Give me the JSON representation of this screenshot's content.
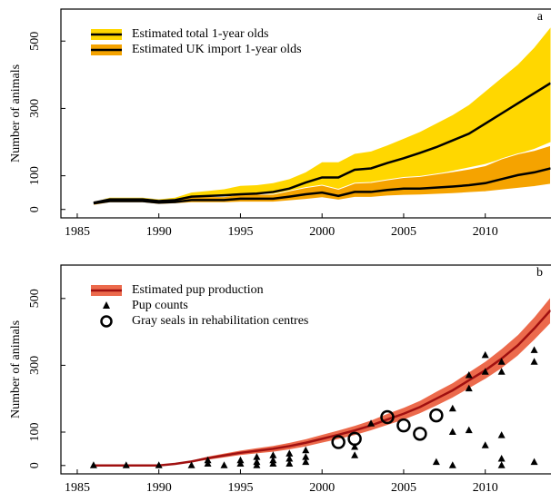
{
  "chart_data": [
    {
      "type": "line",
      "panel": "a",
      "ylabel": "Number of animals",
      "xlim": [
        1984,
        2014
      ],
      "xticks": [
        1985,
        1990,
        1995,
        2000,
        2005,
        2010
      ],
      "ylim": [
        -25,
        595
      ],
      "yticks": [
        0,
        100,
        300,
        500
      ],
      "x": [
        1986,
        1987,
        1988,
        1989,
        1990,
        1991,
        1992,
        1993,
        1994,
        1995,
        1996,
        1997,
        1998,
        1999,
        2000,
        2001,
        2002,
        2003,
        2004,
        2005,
        2006,
        2007,
        2008,
        2009,
        2010,
        2011,
        2012,
        2013,
        2014
      ],
      "series": [
        {
          "name": "Estimated total 1-year olds",
          "type": "band-line",
          "color": "#ffd700",
          "line_color": "#000000",
          "values": [
            20,
            30,
            30,
            30,
            25,
            28,
            38,
            40,
            42,
            45,
            47,
            52,
            62,
            80,
            95,
            95,
            118,
            122,
            138,
            152,
            168,
            185,
            205,
            225,
            255,
            285,
            315,
            345,
            375
          ],
          "lower": [
            15,
            25,
            25,
            25,
            20,
            22,
            28,
            30,
            30,
            32,
            33,
            35,
            40,
            50,
            60,
            60,
            70,
            72,
            80,
            88,
            95,
            105,
            115,
            125,
            135,
            150,
            165,
            180,
            200
          ],
          "upper": [
            25,
            35,
            35,
            35,
            30,
            35,
            50,
            55,
            60,
            70,
            72,
            78,
            90,
            110,
            140,
            140,
            165,
            172,
            190,
            210,
            230,
            255,
            280,
            310,
            350,
            390,
            430,
            480,
            540
          ]
        },
        {
          "name": "Estimated UK import 1-year olds",
          "type": "band-line",
          "color": "#f5a300",
          "line_color": "#000000",
          "values": [
            18,
            25,
            25,
            25,
            20,
            22,
            28,
            28,
            28,
            32,
            32,
            32,
            38,
            45,
            50,
            40,
            52,
            52,
            58,
            62,
            62,
            65,
            68,
            72,
            78,
            90,
            102,
            110,
            122
          ],
          "lower": [
            12,
            20,
            20,
            20,
            15,
            17,
            20,
            20,
            20,
            22,
            22,
            22,
            26,
            30,
            35,
            28,
            36,
            36,
            40,
            42,
            43,
            45,
            47,
            50,
            53,
            58,
            63,
            68,
            75
          ],
          "upper": [
            25,
            32,
            32,
            32,
            27,
            30,
            38,
            38,
            38,
            45,
            45,
            45,
            55,
            65,
            72,
            60,
            78,
            80,
            88,
            95,
            98,
            105,
            112,
            120,
            130,
            150,
            165,
            175,
            190
          ]
        }
      ]
    },
    {
      "type": "line",
      "panel": "b",
      "ylabel": "Number of animals",
      "xlim": [
        1984,
        2014
      ],
      "xticks": [
        1985,
        1990,
        1995,
        2000,
        2005,
        2010
      ],
      "ylim": [
        -25,
        600
      ],
      "yticks": [
        0,
        100,
        300,
        500
      ],
      "series": [
        {
          "name": "Estimated pup production",
          "type": "band-line",
          "color": "#ec6a4c",
          "line_color": "#a01010",
          "x": [
            1986,
            1987,
            1988,
            1989,
            1990,
            1991,
            1992,
            1993,
            1994,
            1995,
            1996,
            1997,
            1998,
            1999,
            2000,
            2001,
            2002,
            2003,
            2004,
            2005,
            2006,
            2007,
            2008,
            2009,
            2010,
            2011,
            2012,
            2013,
            2014
          ],
          "values": [
            0,
            0,
            0,
            0,
            0,
            5,
            12,
            22,
            30,
            38,
            44,
            50,
            58,
            68,
            80,
            92,
            105,
            120,
            138,
            155,
            175,
            200,
            225,
            255,
            285,
            320,
            360,
            410,
            465
          ],
          "lower": [
            0,
            0,
            0,
            0,
            0,
            2,
            8,
            16,
            23,
            30,
            35,
            40,
            47,
            56,
            67,
            78,
            90,
            104,
            120,
            136,
            155,
            178,
            202,
            230,
            258,
            290,
            328,
            375,
            425
          ],
          "upper": [
            0,
            0,
            0,
            0,
            0,
            8,
            16,
            28,
            37,
            46,
            53,
            60,
            69,
            80,
            93,
            106,
            120,
            136,
            156,
            174,
            195,
            222,
            248,
            280,
            312,
            350,
            392,
            445,
            505
          ]
        },
        {
          "name": "Pup counts",
          "type": "triangle",
          "color": "#000000",
          "x": [
            1986,
            1988,
            1990,
            1992,
            1993,
            1993,
            1994,
            1995,
            1995,
            1996,
            1996,
            1996,
            1997,
            1997,
            1997,
            1998,
            1998,
            1998,
            1999,
            1999,
            1999,
            2002,
            2002,
            2003,
            2007,
            2008,
            2008,
            2008,
            2009,
            2009,
            2009,
            2010,
            2010,
            2010,
            2011,
            2011,
            2011,
            2011,
            2011,
            2013,
            2013,
            2013
          ],
          "values": [
            0,
            0,
            0,
            0,
            15,
            5,
            0,
            15,
            5,
            25,
            10,
            0,
            30,
            15,
            5,
            35,
            20,
            5,
            45,
            25,
            10,
            55,
            30,
            125,
            10,
            170,
            100,
            0,
            270,
            230,
            105,
            330,
            280,
            60,
            310,
            280,
            90,
            20,
            0,
            345,
            310,
            10
          ]
        },
        {
          "name": "Gray seals in rehabilitation centres",
          "type": "circle",
          "color": "#000000",
          "x": [
            2001,
            2002,
            2004,
            2005,
            2006,
            2007
          ],
          "values": [
            70,
            80,
            145,
            120,
            95,
            150
          ]
        }
      ]
    }
  ]
}
